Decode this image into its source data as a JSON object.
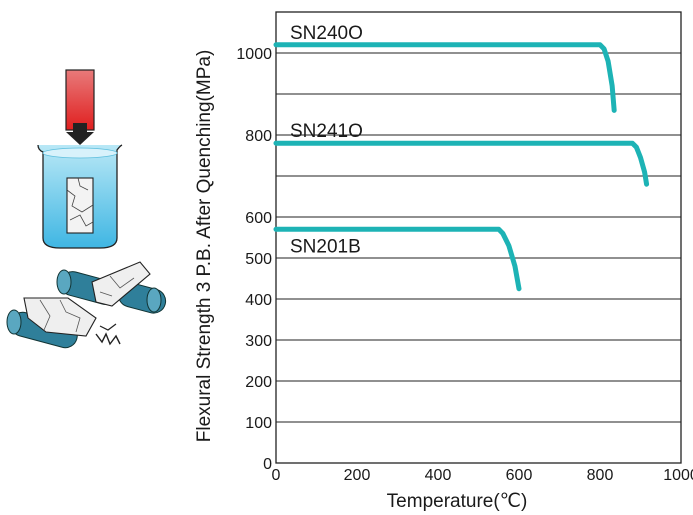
{
  "chart_data": {
    "type": "line",
    "xlabel": "Temperature(℃)",
    "ylabel": "Flexural Strength 3 P.B. After Quenching(MPa)",
    "xlim": [
      0,
      1000
    ],
    "ylim": [
      0,
      1100
    ],
    "x_ticks": [
      "0",
      "200",
      "400",
      "600",
      "800",
      "1000"
    ],
    "y_ticks": [
      "0",
      "100",
      "200",
      "300",
      "400",
      "500",
      "600",
      "800",
      "1000"
    ],
    "grid": "horizontal",
    "series": [
      {
        "name": "SN240O",
        "color": "#1db3b5",
        "x": [
          0,
          800,
          810,
          820,
          830,
          835
        ],
        "y": [
          1020,
          1020,
          1010,
          980,
          920,
          860
        ]
      },
      {
        "name": "SN241O",
        "color": "#1db3b5",
        "x": [
          0,
          880,
          890,
          900,
          910,
          915
        ],
        "y": [
          780,
          780,
          770,
          745,
          710,
          680
        ]
      },
      {
        "name": "SN201B",
        "color": "#1db3b5",
        "x": [
          0,
          550,
          560,
          575,
          590,
          600
        ],
        "y": [
          570,
          570,
          560,
          530,
          480,
          425
        ]
      }
    ]
  },
  "illustration": {
    "icons": [
      "heated-sample-icon",
      "water-beaker-icon",
      "roller-fracture-icon"
    ],
    "colors": {
      "sample": "#e23a3a",
      "water": "#7fd3ef",
      "roller": "#2f7f9a"
    }
  }
}
